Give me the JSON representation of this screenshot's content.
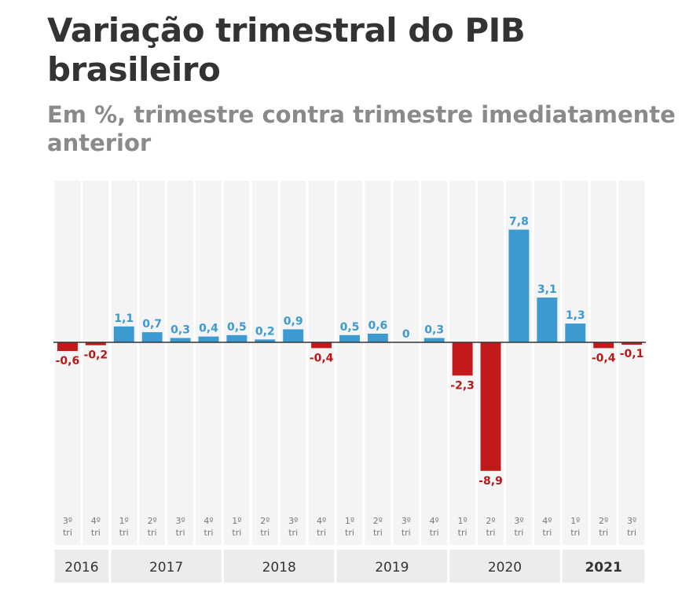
{
  "chart_data": {
    "type": "bar",
    "title": "Variação trimestral do PIB brasileiro",
    "subtitle": "Em %, trimestre contra trimestre imediatamente anterior",
    "categories": [
      {
        "quarter": "3º",
        "suffix": "tri",
        "year": "2016"
      },
      {
        "quarter": "4º",
        "suffix": "tri",
        "year": "2016"
      },
      {
        "quarter": "1º",
        "suffix": "tri",
        "year": "2017"
      },
      {
        "quarter": "2º",
        "suffix": "tri",
        "year": "2017"
      },
      {
        "quarter": "3º",
        "suffix": "tri",
        "year": "2017"
      },
      {
        "quarter": "4º",
        "suffix": "tri",
        "year": "2017"
      },
      {
        "quarter": "1º",
        "suffix": "tri",
        "year": "2018"
      },
      {
        "quarter": "2º",
        "suffix": "tri",
        "year": "2018"
      },
      {
        "quarter": "3º",
        "suffix": "tri",
        "year": "2018"
      },
      {
        "quarter": "4º",
        "suffix": "tri",
        "year": "2018"
      },
      {
        "quarter": "1º",
        "suffix": "tri",
        "year": "2019"
      },
      {
        "quarter": "2º",
        "suffix": "tri",
        "year": "2019"
      },
      {
        "quarter": "3º",
        "suffix": "tri",
        "year": "2019"
      },
      {
        "quarter": "4º",
        "suffix": "tri",
        "year": "2019"
      },
      {
        "quarter": "1º",
        "suffix": "tri",
        "year": "2020"
      },
      {
        "quarter": "2º",
        "suffix": "tri",
        "year": "2020"
      },
      {
        "quarter": "3º",
        "suffix": "tri",
        "year": "2020"
      },
      {
        "quarter": "4º",
        "suffix": "tri",
        "year": "2020"
      },
      {
        "quarter": "1º",
        "suffix": "tri",
        "year": "2021"
      },
      {
        "quarter": "2º",
        "suffix": "tri",
        "year": "2021"
      },
      {
        "quarter": "3º",
        "suffix": "tri",
        "year": "2021"
      }
    ],
    "values": [
      -0.6,
      -0.2,
      1.1,
      0.7,
      0.3,
      0.4,
      0.5,
      0.2,
      0.9,
      -0.4,
      0.5,
      0.6,
      0,
      0.3,
      -2.3,
      -8.9,
      7.8,
      3.1,
      1.3,
      -0.4,
      -0.1
    ],
    "value_labels": [
      "-0,6",
      "-0,2",
      "1,1",
      "0,7",
      "0,3",
      "0,4",
      "0,5",
      "0,2",
      "0,9",
      "-0,4",
      "0,5",
      "0,6",
      "0",
      "0,3",
      "-2,3",
      "-8,9",
      "7,8",
      "3,1",
      "1,3",
      "-0,4",
      "-0,1"
    ],
    "years": [
      {
        "label": "2016",
        "count": 2,
        "bold": false
      },
      {
        "label": "2017",
        "count": 4,
        "bold": false
      },
      {
        "label": "2018",
        "count": 4,
        "bold": false
      },
      {
        "label": "2019",
        "count": 4,
        "bold": false
      },
      {
        "label": "2020",
        "count": 4,
        "bold": false
      },
      {
        "label": "2021",
        "count": 3,
        "bold": true
      }
    ],
    "xlabel": "",
    "ylabel": "",
    "ylim": [
      -10,
      8
    ],
    "grid": false,
    "colors": {
      "positive": "#3d9ad1",
      "negative": "#c21a1a",
      "positive_label": "#3d9ad1",
      "negative_label": "#b81818",
      "column_band": "#f4f4f4",
      "year_band": "#ececec",
      "axis": "#333333"
    }
  }
}
